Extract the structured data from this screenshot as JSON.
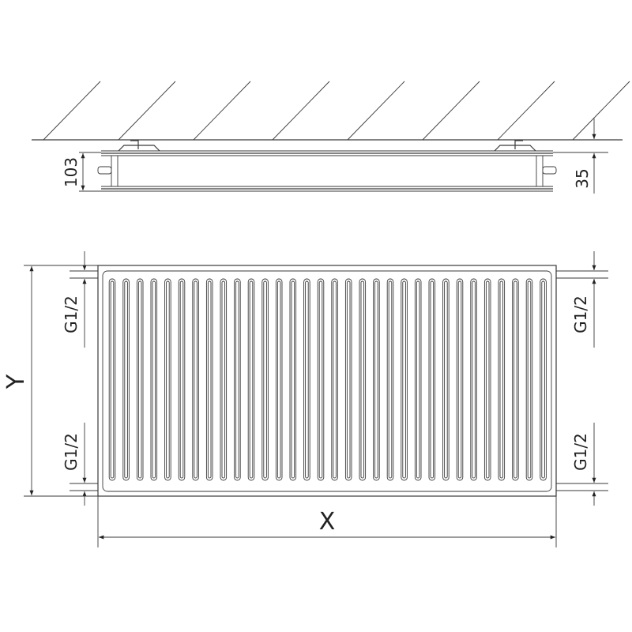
{
  "side_view": {
    "depth_label": "103",
    "wall_distance_label": "35"
  },
  "front_view": {
    "connection_left_top": "G1/2",
    "connection_left_bottom": "G1/2",
    "connection_right_top": "G1/2",
    "connection_right_bottom": "G1/2",
    "height_label": "Y",
    "width_label": "X"
  },
  "colors": {
    "line": "#3a3a3a",
    "background": "#ffffff"
  }
}
